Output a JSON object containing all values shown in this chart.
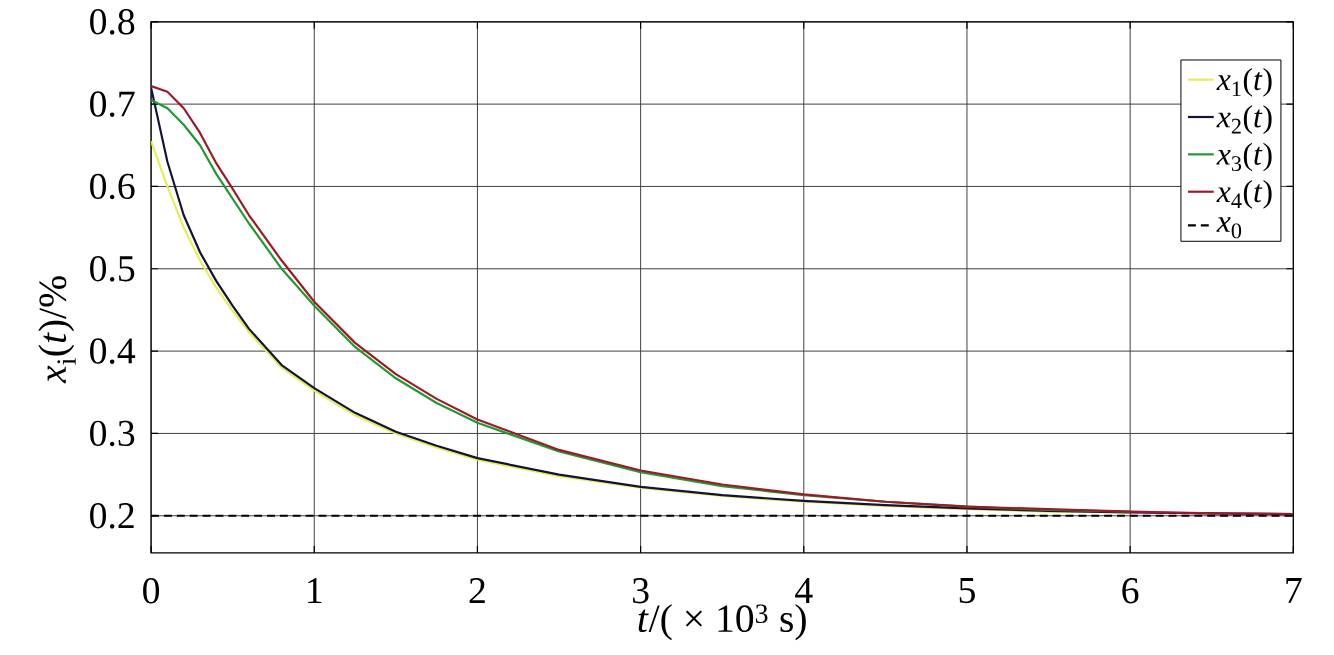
{
  "chart_data": {
    "type": "line",
    "xlabel": "*t*/( × 10$^{3}$ s)",
    "ylabel": "*x*$_{i}$(*t*)/%",
    "xlim": [
      0,
      7
    ],
    "ylim": [
      0.155,
      0.8
    ],
    "xticks": [
      0,
      1,
      2,
      3,
      4,
      5,
      6,
      7
    ],
    "yticks": [
      0.2,
      0.3,
      0.4,
      0.5,
      0.6,
      0.7,
      0.8
    ],
    "grid": true,
    "legend": "top right",
    "x": [
      0,
      0.1,
      0.2,
      0.3,
      0.4,
      0.5,
      0.6,
      0.8,
      1.0,
      1.25,
      1.5,
      1.75,
      2,
      2.5,
      3,
      3.5,
      4,
      4.5,
      5,
      5.5,
      6,
      6.5,
      7
    ],
    "series": [
      {
        "name": "*x*$_{1}$(*t*)",
        "color": "#e6ee50",
        "values": [
          0.655,
          0.6,
          0.55,
          0.51,
          0.477,
          0.449,
          0.423,
          0.38,
          0.352,
          0.322,
          0.3,
          0.283,
          0.268,
          0.248,
          0.234,
          0.224,
          0.217,
          0.212,
          0.208,
          0.205,
          0.204,
          null,
          null
        ]
      },
      {
        "name": "*x*$_{2}$(*t*)",
        "color": "#12123c",
        "values": [
          0.72,
          0.63,
          0.565,
          0.52,
          0.485,
          0.455,
          0.427,
          0.383,
          0.355,
          0.325,
          0.302,
          0.285,
          0.27,
          0.25,
          0.235,
          0.225,
          0.218,
          0.213,
          0.209,
          0.206,
          0.204,
          0.203,
          0.202
        ]
      },
      {
        "name": "*x*$_{3}$(*t*)",
        "color": "#1f9a30",
        "values": [
          0.705,
          0.695,
          0.675,
          0.65,
          0.615,
          0.585,
          0.555,
          0.5,
          0.455,
          0.405,
          0.367,
          0.337,
          0.313,
          0.278,
          0.253,
          0.236,
          0.225,
          0.217,
          0.211,
          0.207,
          0.205,
          null,
          null
        ]
      },
      {
        "name": "*x*$_{4}$(*t*)",
        "color": "#a01828",
        "values": [
          0.722,
          0.715,
          0.695,
          0.665,
          0.628,
          0.597,
          0.565,
          0.51,
          0.46,
          0.41,
          0.372,
          0.342,
          0.317,
          0.28,
          0.255,
          0.238,
          0.226,
          0.217,
          0.211,
          0.208,
          0.205,
          0.203,
          0.202
        ]
      },
      {
        "name": "*x*$_{0}$",
        "color": "#000000",
        "line_style": "dashed",
        "x": [
          0,
          7
        ],
        "values": [
          0.2,
          0.2
        ]
      }
    ]
  }
}
